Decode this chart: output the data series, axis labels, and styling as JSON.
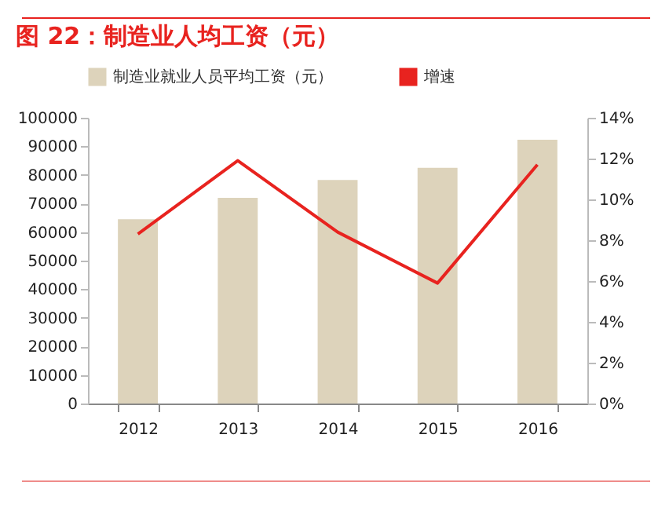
{
  "chart_data": {
    "type": "bar",
    "title": "图 22：制造业人均工资（元）",
    "categories": [
      "2012",
      "2013",
      "2014",
      "2015",
      "2016"
    ],
    "series": [
      {
        "name": "制造业就业人员平均工资（元）",
        "color": "#ddd3bb",
        "values": [
          64500,
          72000,
          78200,
          82500,
          92300
        ]
      },
      {
        "name": "增速",
        "type": "line",
        "axis": "y2",
        "color": "#e8231f",
        "values": [
          8.3,
          11.9,
          8.4,
          5.9,
          11.7
        ]
      }
    ],
    "ylim": [
      0,
      100000
    ],
    "yticks": [
      0,
      10000,
      20000,
      30000,
      40000,
      50000,
      60000,
      70000,
      80000,
      90000,
      100000
    ],
    "y2lim": [
      0,
      14
    ],
    "y2ticks": [
      {
        "value": 0,
        "label": "0%"
      },
      {
        "value": 2,
        "label": "2%"
      },
      {
        "value": 4,
        "label": "4%"
      },
      {
        "value": 6,
        "label": "6%"
      },
      {
        "value": 8,
        "label": "8%"
      },
      {
        "value": 10,
        "label": "10%"
      },
      {
        "value": 12,
        "label": "12%"
      },
      {
        "value": 14,
        "label": "14%"
      }
    ],
    "grid": false,
    "legend": "top"
  }
}
